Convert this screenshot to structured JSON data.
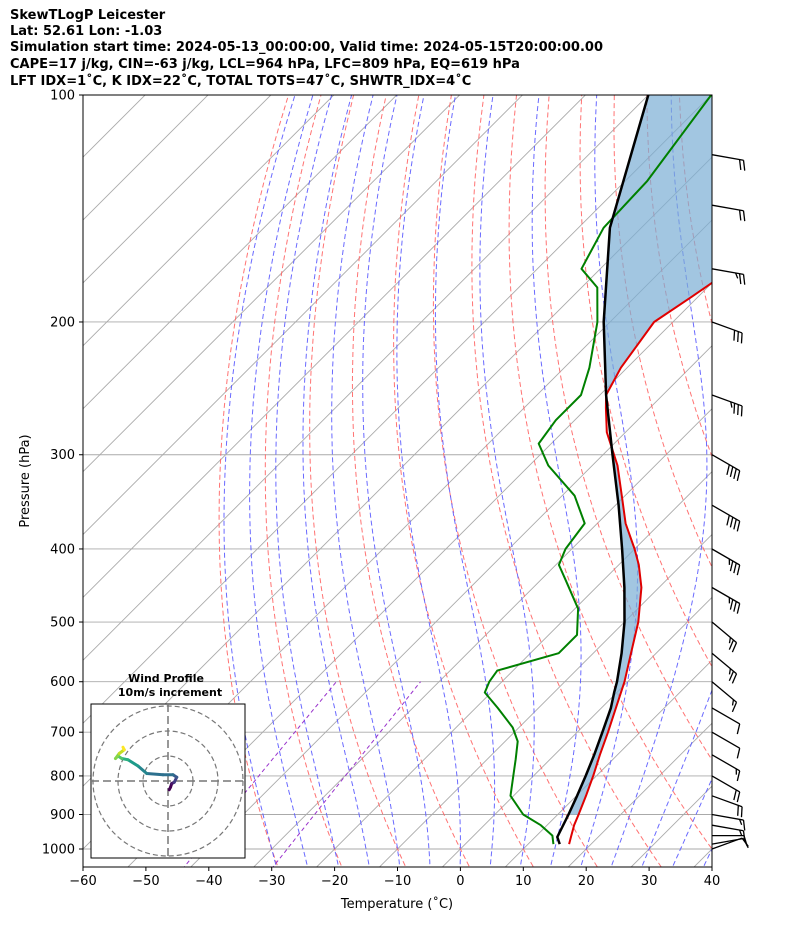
{
  "header": {
    "line1": "SkewTLogP Leicester",
    "line2": "Lat: 52.61   Lon: -1.03",
    "line3": "Simulation start time: 2024-05-13_00:00:00, Valid time: 2024-05-15T20:00:00.00",
    "line4": "CAPE=17 j/kg, CIN=-63 j/kg, LCL=964 hPa, LFC=809 hPa, EQ=619 hPa",
    "line5": "LFT IDX=1˚C, K IDX=22˚C, TOTAL TOTS=47˚C, SHWTR_IDX=4˚C"
  },
  "chart_data": {
    "type": "line",
    "subtype": "skew-T log-P diagram",
    "xlabel": "Temperature (˚C)",
    "ylabel": "Pressure (hPa)",
    "xlim": [
      -60,
      40
    ],
    "ylim": [
      1050,
      100
    ],
    "x_ticks": [
      -60,
      -50,
      -40,
      -30,
      -20,
      -10,
      0,
      10,
      20,
      30,
      40
    ],
    "x_tick_labels": [
      "−60",
      "−50",
      "−40",
      "−30",
      "−20",
      "−10",
      "0",
      "10",
      "20",
      "30",
      "40"
    ],
    "y_ticks": [
      100,
      200,
      300,
      400,
      500,
      600,
      700,
      800,
      900,
      1000
    ],
    "y_scale": "log",
    "grid": true,
    "colors": {
      "temperature": "#e00000",
      "dewpoint": "#008000",
      "parcel": "#000000",
      "cape_fill": "#7aaed4",
      "dry_adiabats": "#ff6464",
      "moist_adiabats": "#5a5aff",
      "mixing_ratio": "#9932cc",
      "isotherms": "#aaaaaa"
    },
    "series": [
      {
        "key": "temperature",
        "p": [
          985,
          960,
          930,
          900,
          850,
          800,
          750,
          700,
          650,
          600,
          550,
          500,
          450,
          420,
          400,
          370,
          340,
          310,
          280,
          260,
          250,
          230,
          200,
          185,
          170,
          160,
          150,
          140,
          130,
          120,
          110,
          100
        ],
        "t": [
          16.5,
          15.5,
          14.3,
          13.3,
          11.5,
          9.5,
          7.2,
          4.9,
          2.3,
          -0.5,
          -4.0,
          -7.8,
          -12.8,
          -16.8,
          -20.0,
          -25.5,
          -30.5,
          -36.0,
          -43.0,
          -47.0,
          -49.0,
          -51.0,
          -53.0,
          -51.0,
          -49.0,
          -47.5,
          -46.5,
          -46.0,
          -46.0,
          -46.5,
          -47.5,
          -49.0
        ]
      },
      {
        "key": "dewpoint",
        "p": [
          985,
          960,
          930,
          900,
          850,
          800,
          760,
          720,
          690,
          650,
          620,
          600,
          580,
          550,
          520,
          480,
          440,
          420,
          400,
          370,
          340,
          310,
          290,
          270,
          250,
          230,
          200,
          180,
          170,
          150,
          130,
          100
        ],
        "t": [
          14.0,
          12.5,
          9.0,
          4.5,
          -0.5,
          -3.2,
          -5.5,
          -8.0,
          -11.0,
          -16.5,
          -21.0,
          -22.0,
          -22.5,
          -15.5,
          -15.5,
          -19.5,
          -26.0,
          -29.5,
          -31.0,
          -32.0,
          -38.0,
          -47.0,
          -52.0,
          -53.0,
          -53.0,
          -56.0,
          -62.0,
          -67.5,
          -73.0,
          -76.0,
          -76.5,
          -80.0
        ]
      },
      {
        "key": "parcel",
        "p": [
          985,
          964,
          900,
          850,
          800,
          750,
          700,
          650,
          619,
          600,
          550,
          500,
          450,
          400,
          350,
          300,
          250,
          200,
          150,
          100
        ],
        "t": [
          15.0,
          13.5,
          11.7,
          10.1,
          8.3,
          6.3,
          4.0,
          1.5,
          -0.5,
          -1.7,
          -5.5,
          -10.0,
          -15.5,
          -22.0,
          -29.5,
          -38.5,
          -49.0,
          -61.0,
          -75.0,
          -90.0
        ]
      }
    ],
    "wind_barbs": {
      "p": [
        1000,
        985,
        960,
        930,
        900,
        850,
        800,
        750,
        700,
        650,
        600,
        550,
        500,
        450,
        400,
        350,
        300,
        250,
        200,
        170,
        140,
        120
      ],
      "speed_kt": [
        10,
        10,
        12,
        15,
        15,
        20,
        20,
        15,
        10,
        10,
        15,
        25,
        25,
        35,
        35,
        40,
        40,
        35,
        30,
        25,
        20,
        20
      ],
      "dir_deg": [
        250,
        260,
        270,
        280,
        280,
        290,
        300,
        300,
        300,
        300,
        310,
        310,
        310,
        300,
        300,
        300,
        300,
        290,
        290,
        280,
        280,
        280
      ]
    },
    "inset": {
      "title_line1": "Wind Profile",
      "title_line2": "10m/s increment",
      "rings_ms": [
        10,
        20,
        30
      ],
      "hodograph": {
        "u": [
          0.5,
          1.0,
          1.5,
          2.5,
          3.5,
          2.0,
          -2.0,
          -8.5,
          -12.0,
          -16.0,
          -18.5,
          -20.0,
          -21.0,
          -19.5,
          -17.5,
          -18.0
        ],
        "v": [
          -3.5,
          -2.5,
          -1.0,
          -0.5,
          1.5,
          2.5,
          2.5,
          3.0,
          6.0,
          8.5,
          9.0,
          10.0,
          9.0,
          11.0,
          12.5,
          13.5
        ],
        "colors": [
          "#440154",
          "#48186a",
          "#433d84",
          "#38598c",
          "#2d708e",
          "#25858e",
          "#1e9b8a",
          "#2ab07f",
          "#52c569",
          "#86d549",
          "#c2df23",
          "#fde725"
        ]
      }
    }
  }
}
